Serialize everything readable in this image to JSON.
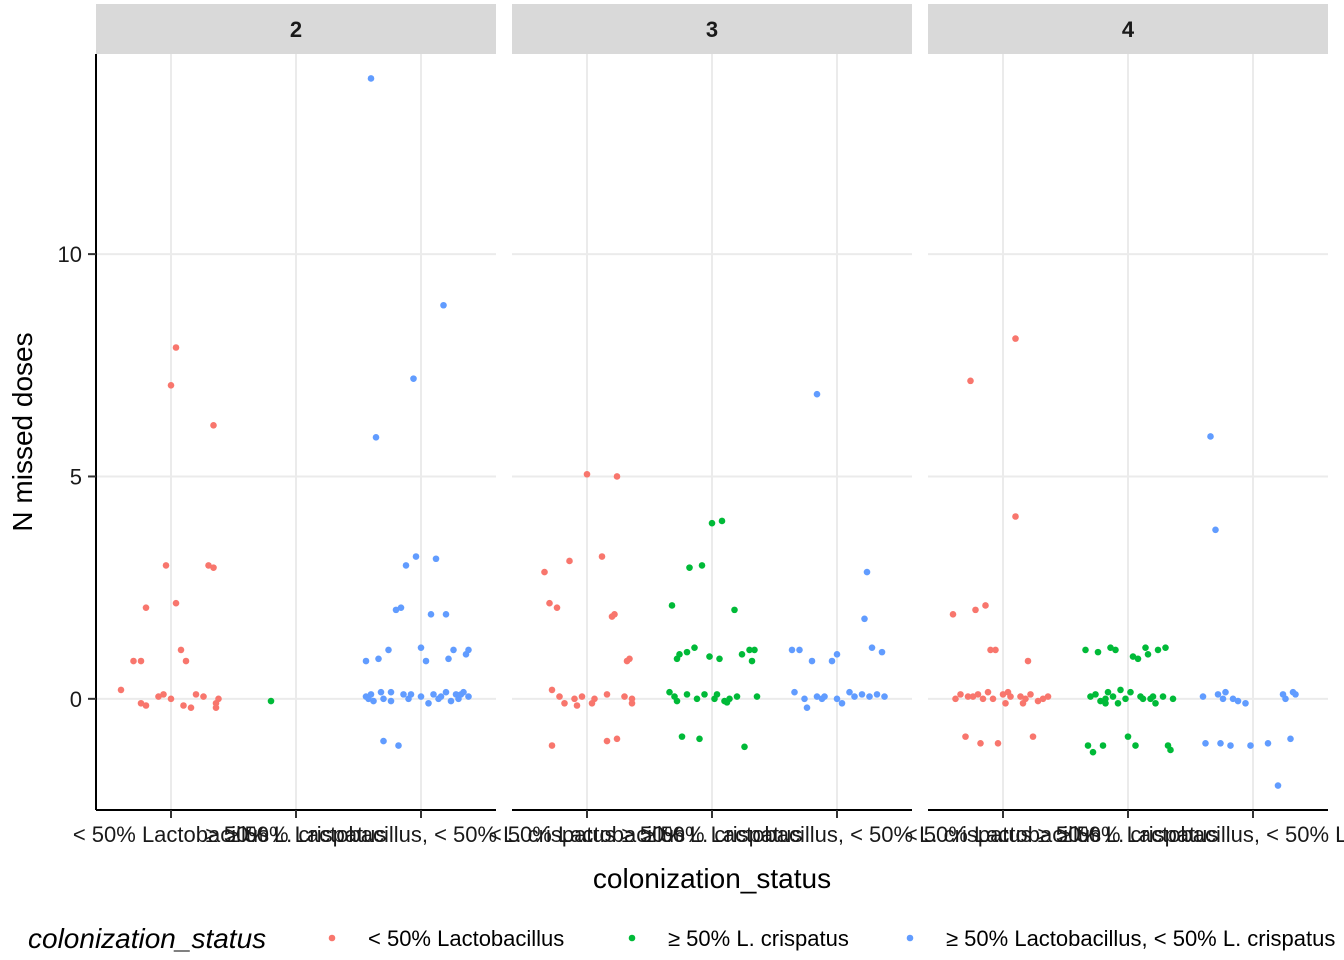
{
  "chart_data": {
    "type": "scatter",
    "xlabel": "colonization_status",
    "ylabel": "N missed doses",
    "ylim": [
      -2.5,
      14.5
    ],
    "yticks": [
      0,
      5,
      10
    ],
    "grid": true,
    "legend_title": "colonization_status",
    "legend_position": "bottom",
    "categories": [
      "< 50% Lactobacillus",
      "≥ 50% L. crispatus",
      "≥ 50% Lactobacillus, < 50% L. crispatus"
    ],
    "legend_labels": [
      "< 50% Lactobacillus",
      "≥ 50% L. crispatus",
      "≥ 50% Lactobacillus, < 50% L. crispatus"
    ],
    "colors": [
      "#F8766D",
      "#00BA38",
      "#619CFF"
    ],
    "panels": [
      {
        "label": "2",
        "series": [
          {
            "category": 0,
            "points": [
              [
                -0.2,
                0.2
              ],
              [
                -0.15,
                0.85
              ],
              [
                -0.12,
                0.85
              ],
              [
                -0.12,
                -0.1
              ],
              [
                -0.1,
                -0.15
              ],
              [
                -0.05,
                0.05
              ],
              [
                -0.03,
                0.1
              ],
              [
                -0.1,
                2.05
              ],
              [
                0.0,
                7.05
              ],
              [
                0.02,
                7.9
              ],
              [
                0.02,
                2.15
              ],
              [
                0.04,
                1.1
              ],
              [
                0.06,
                0.85
              ],
              [
                0.05,
                -0.15
              ],
              [
                0.08,
                -0.2
              ],
              [
                0.1,
                0.1
              ],
              [
                0.13,
                0.05
              ],
              [
                0.15,
                3.0
              ],
              [
                0.17,
                2.95
              ],
              [
                0.17,
                6.15
              ],
              [
                0.18,
                -0.1
              ],
              [
                0.19,
                0.0
              ],
              [
                0.18,
                -0.2
              ],
              [
                0.0,
                0.0
              ],
              [
                -0.02,
                3.0
              ]
            ]
          },
          {
            "category": 1,
            "points": [
              [
                -0.1,
                -0.05
              ]
            ]
          },
          {
            "category": 2,
            "points": [
              [
                -0.2,
                13.95
              ],
              [
                -0.18,
                5.88
              ],
              [
                -0.15,
                -0.95
              ],
              [
                -0.22,
                0.85
              ],
              [
                -0.22,
                0.05
              ],
              [
                -0.2,
                0.1
              ],
              [
                -0.19,
                -0.05
              ],
              [
                -0.17,
                0.9
              ],
              [
                -0.15,
                0.0
              ],
              [
                -0.13,
                1.1
              ],
              [
                -0.12,
                0.15
              ],
              [
                -0.1,
                2.0
              ],
              [
                -0.09,
                -1.05
              ],
              [
                -0.08,
                2.05
              ],
              [
                -0.06,
                3.0
              ],
              [
                -0.05,
                0.0
              ],
              [
                -0.04,
                0.1
              ],
              [
                -0.03,
                7.2
              ],
              [
                -0.02,
                3.2
              ],
              [
                0.0,
                1.15
              ],
              [
                0.02,
                0.85
              ],
              [
                0.04,
                1.9
              ],
              [
                0.06,
                3.15
              ],
              [
                0.08,
                0.05
              ],
              [
                0.09,
                8.85
              ],
              [
                0.1,
                1.9
              ],
              [
                0.11,
                0.9
              ],
              [
                0.13,
                1.1
              ],
              [
                0.15,
                0.0
              ],
              [
                0.16,
                0.1
              ],
              [
                0.18,
                1.0
              ],
              [
                0.19,
                0.05
              ],
              [
                0.19,
                1.1
              ],
              [
                0.05,
                0.1
              ],
              [
                -0.12,
                -0.05
              ],
              [
                0.12,
                -0.05
              ],
              [
                0.0,
                0.05
              ],
              [
                -0.07,
                0.1
              ],
              [
                0.14,
                0.1
              ],
              [
                0.17,
                0.15
              ],
              [
                0.03,
                -0.1
              ],
              [
                -0.16,
                0.15
              ],
              [
                0.07,
                0.0
              ],
              [
                0.1,
                0.15
              ],
              [
                -0.21,
                0.0
              ]
            ]
          }
        ]
      },
      {
        "label": "3",
        "series": [
          {
            "category": 0,
            "points": [
              [
                -0.17,
                2.85
              ],
              [
                -0.15,
                2.15
              ],
              [
                -0.14,
                0.2
              ],
              [
                -0.14,
                -1.05
              ],
              [
                -0.12,
                2.05
              ],
              [
                -0.11,
                0.05
              ],
              [
                -0.09,
                -0.1
              ],
              [
                -0.07,
                3.1
              ],
              [
                -0.05,
                0.0
              ],
              [
                -0.04,
                -0.15
              ],
              [
                0.0,
                5.05
              ],
              [
                0.02,
                -0.1
              ],
              [
                0.06,
                3.2
              ],
              [
                0.08,
                0.1
              ],
              [
                0.08,
                -0.95
              ],
              [
                0.1,
                1.85
              ],
              [
                0.11,
                1.9
              ],
              [
                0.12,
                5.0
              ],
              [
                0.12,
                -0.9
              ],
              [
                0.15,
                0.05
              ],
              [
                0.16,
                0.85
              ],
              [
                0.17,
                0.9
              ],
              [
                0.18,
                0.0
              ],
              [
                0.18,
                -0.1
              ],
              [
                0.03,
                0.0
              ],
              [
                -0.02,
                0.05
              ]
            ]
          },
          {
            "category": 1,
            "points": [
              [
                -0.17,
                0.15
              ],
              [
                -0.16,
                2.1
              ],
              [
                -0.15,
                0.05
              ],
              [
                -0.14,
                0.9
              ],
              [
                -0.13,
                1.0
              ],
              [
                -0.12,
                -0.85
              ],
              [
                -0.1,
                0.1
              ],
              [
                -0.1,
                1.05
              ],
              [
                -0.09,
                2.95
              ],
              [
                -0.07,
                1.15
              ],
              [
                -0.05,
                -0.9
              ],
              [
                -0.04,
                3.0
              ],
              [
                -0.03,
                0.1
              ],
              [
                -0.01,
                0.95
              ],
              [
                0.0,
                3.95
              ],
              [
                0.01,
                0.0
              ],
              [
                0.03,
                0.9
              ],
              [
                0.04,
                4.0
              ],
              [
                0.05,
                -0.05
              ],
              [
                0.07,
                0.0
              ],
              [
                0.09,
                2.0
              ],
              [
                0.12,
                1.0
              ],
              [
                0.15,
                1.1
              ],
              [
                0.16,
                0.85
              ],
              [
                0.17,
                1.1
              ],
              [
                0.18,
                0.05
              ],
              [
                -0.06,
                0.0
              ],
              [
                0.02,
                0.1
              ],
              [
                0.1,
                0.05
              ],
              [
                -0.14,
                -0.05
              ],
              [
                0.13,
                -1.08
              ],
              [
                0.06,
                -0.08
              ]
            ]
          },
          {
            "category": 2,
            "points": [
              [
                -0.18,
                1.1
              ],
              [
                -0.17,
                0.15
              ],
              [
                -0.15,
                1.1
              ],
              [
                -0.12,
                -0.2
              ],
              [
                -0.1,
                0.85
              ],
              [
                -0.08,
                0.05
              ],
              [
                -0.06,
                0.0
              ],
              [
                -0.05,
                0.05
              ],
              [
                -0.02,
                0.85
              ],
              [
                0.0,
                1.0
              ],
              [
                0.0,
                0.0
              ],
              [
                0.02,
                -0.1
              ],
              [
                0.05,
                0.15
              ],
              [
                0.07,
                0.05
              ],
              [
                0.1,
                0.1
              ],
              [
                0.11,
                1.8
              ],
              [
                0.12,
                2.85
              ],
              [
                0.13,
                0.05
              ],
              [
                0.14,
                1.15
              ],
              [
                0.16,
                0.1
              ],
              [
                0.18,
                1.05
              ],
              [
                0.19,
                0.05
              ],
              [
                -0.08,
                6.85
              ],
              [
                -0.13,
                0.0
              ]
            ]
          }
        ]
      },
      {
        "label": "4",
        "series": [
          {
            "category": 0,
            "points": [
              [
                -0.2,
                1.9
              ],
              [
                -0.19,
                0.0
              ],
              [
                -0.17,
                0.1
              ],
              [
                -0.15,
                -0.85
              ],
              [
                -0.13,
                7.15
              ],
              [
                -0.12,
                0.05
              ],
              [
                -0.11,
                2.0
              ],
              [
                -0.1,
                0.1
              ],
              [
                -0.09,
                -1.0
              ],
              [
                -0.07,
                2.1
              ],
              [
                -0.06,
                0.15
              ],
              [
                -0.05,
                1.1
              ],
              [
                -0.04,
                0.0
              ],
              [
                -0.03,
                1.1
              ],
              [
                -0.02,
                -1.0
              ],
              [
                0.0,
                0.1
              ],
              [
                0.01,
                -0.1
              ],
              [
                0.03,
                0.05
              ],
              [
                0.05,
                8.1
              ],
              [
                0.05,
                4.1
              ],
              [
                0.07,
                0.05
              ],
              [
                0.08,
                -0.1
              ],
              [
                0.09,
                0.0
              ],
              [
                0.1,
                0.85
              ],
              [
                0.11,
                0.1
              ],
              [
                0.12,
                -0.85
              ],
              [
                0.14,
                -0.05
              ],
              [
                0.16,
                0.0
              ],
              [
                0.18,
                0.05
              ],
              [
                -0.08,
                0.0
              ],
              [
                0.02,
                0.15
              ],
              [
                -0.14,
                0.05
              ]
            ]
          },
          {
            "category": 1,
            "points": [
              [
                -0.17,
                1.1
              ],
              [
                -0.16,
                -1.05
              ],
              [
                -0.15,
                0.05
              ],
              [
                -0.14,
                -1.2
              ],
              [
                -0.12,
                1.05
              ],
              [
                -0.11,
                -0.05
              ],
              [
                -0.1,
                -1.05
              ],
              [
                -0.09,
                0.0
              ],
              [
                -0.08,
                0.15
              ],
              [
                -0.07,
                1.15
              ],
              [
                -0.06,
                0.05
              ],
              [
                -0.05,
                1.1
              ],
              [
                -0.04,
                -0.1
              ],
              [
                -0.03,
                0.2
              ],
              [
                -0.01,
                0.0
              ],
              [
                0.0,
                -0.85
              ],
              [
                0.02,
                0.95
              ],
              [
                0.03,
                -1.05
              ],
              [
                0.04,
                0.9
              ],
              [
                0.05,
                0.05
              ],
              [
                0.07,
                1.15
              ],
              [
                0.08,
                1.0
              ],
              [
                0.09,
                0.0
              ],
              [
                0.11,
                -0.1
              ],
              [
                0.12,
                1.1
              ],
              [
                0.14,
                0.05
              ],
              [
                0.15,
                1.15
              ],
              [
                0.16,
                -1.05
              ],
              [
                0.17,
                -1.15
              ],
              [
                0.18,
                0.0
              ],
              [
                -0.13,
                0.1
              ],
              [
                0.06,
                0.0
              ],
              [
                0.01,
                0.15
              ],
              [
                -0.09,
                -0.1
              ],
              [
                0.1,
                0.05
              ]
            ]
          },
          {
            "category": 2,
            "points": [
              [
                -0.2,
                0.05
              ],
              [
                -0.19,
                -1.0
              ],
              [
                -0.17,
                5.9
              ],
              [
                -0.15,
                3.8
              ],
              [
                -0.14,
                0.1
              ],
              [
                -0.13,
                -1.0
              ],
              [
                -0.11,
                0.15
              ],
              [
                -0.09,
                -1.05
              ],
              [
                -0.08,
                0.0
              ],
              [
                -0.06,
                -0.05
              ],
              [
                -0.03,
                -0.1
              ],
              [
                -0.01,
                -1.05
              ],
              [
                0.06,
                -1.0
              ],
              [
                0.1,
                -1.95
              ],
              [
                0.12,
                0.1
              ],
              [
                0.15,
                -0.9
              ],
              [
                0.16,
                0.15
              ],
              [
                0.17,
                0.1
              ],
              [
                0.13,
                0.0
              ],
              [
                -0.12,
                0.0
              ]
            ]
          }
        ]
      }
    ]
  }
}
